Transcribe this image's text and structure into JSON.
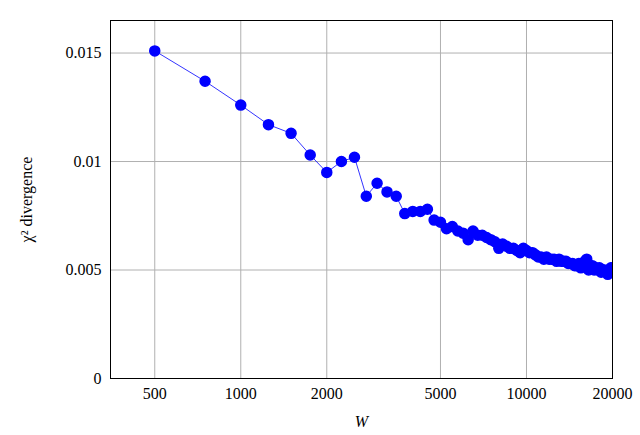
{
  "chart_data": {
    "type": "line",
    "x_label": "W",
    "y_label": "χ² divergence",
    "log": "x",
    "grid": true,
    "color": "#0000ff",
    "marker": "circle",
    "line_style": "solid",
    "xlim": [
      350,
      20000
    ],
    "xticks": [
      500,
      1000,
      2000,
      5000,
      10000,
      20000
    ],
    "ylim": [
      0,
      0.0165
    ],
    "yticks": [
      0,
      0.005,
      0.01,
      0.015
    ],
    "x": [
      500,
      750,
      1000,
      1250,
      1500,
      1750,
      2000,
      2250,
      2500,
      2750,
      3000,
      3250,
      3500,
      3750,
      4000,
      4250,
      4500,
      4750,
      5000,
      5250,
      5500,
      5750,
      6000,
      6250,
      6500,
      6750,
      7000,
      7250,
      7500,
      7750,
      8000,
      8250,
      8500,
      8750,
      9000,
      9250,
      9500,
      9750,
      10000,
      10250,
      10500,
      10750,
      11000,
      11250,
      11500,
      11750,
      12000,
      12250,
      12500,
      12750,
      13000,
      13250,
      13500,
      13750,
      14000,
      14250,
      14500,
      14750,
      15000,
      15250,
      15500,
      15750,
      16000,
      16250,
      16500,
      16750,
      17000,
      17250,
      17500,
      17750,
      18000,
      18250,
      18500,
      18750,
      19000,
      19250,
      19500,
      19750,
      20000
    ],
    "values": [
      0.0151,
      0.0137,
      0.0126,
      0.0117,
      0.0113,
      0.0103,
      0.0095,
      0.01,
      0.0102,
      0.0084,
      0.009,
      0.0086,
      0.0084,
      0.0076,
      0.0077,
      0.0077,
      0.0078,
      0.0073,
      0.0072,
      0.0069,
      0.007,
      0.0068,
      0.0067,
      0.0064,
      0.0068,
      0.0066,
      0.0066,
      0.0065,
      0.0064,
      0.0063,
      0.006,
      0.0062,
      0.0061,
      0.006,
      0.006,
      0.0059,
      0.0058,
      0.006,
      0.0059,
      0.0058,
      0.0058,
      0.0057,
      0.0056,
      0.0056,
      0.0055,
      0.0056,
      0.0055,
      0.0055,
      0.0055,
      0.0054,
      0.0055,
      0.0054,
      0.0054,
      0.0054,
      0.0053,
      0.0053,
      0.0053,
      0.0052,
      0.0052,
      0.0053,
      0.0051,
      0.0052,
      0.0054,
      0.0055,
      0.005,
      0.0051,
      0.0052,
      0.005,
      0.0051,
      0.005,
      0.0051,
      0.0049,
      0.005,
      0.005,
      0.0049,
      0.0048,
      0.005,
      0.0051,
      0.0051
    ]
  }
}
